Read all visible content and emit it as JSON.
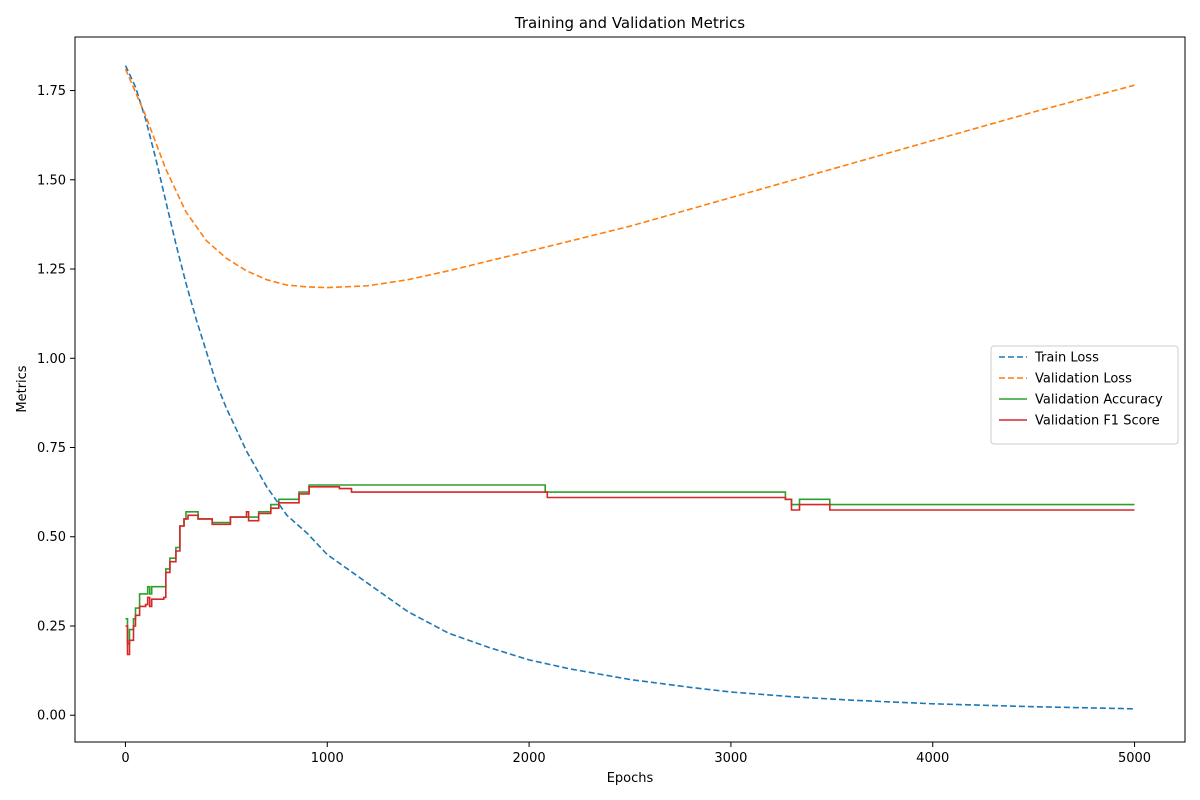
{
  "chart_data": {
    "type": "line",
    "title": "Training and Validation Metrics",
    "xlabel": "Epochs",
    "ylabel": "Metrics",
    "xlim": [
      -250,
      5250
    ],
    "ylim": [
      -0.075,
      1.9
    ],
    "xticks": [
      0,
      1000,
      2000,
      3000,
      4000,
      5000
    ],
    "yticks": [
      0.0,
      0.25,
      0.5,
      0.75,
      1.0,
      1.25,
      1.5,
      1.75
    ],
    "xtick_labels": [
      "0",
      "1000",
      "2000",
      "3000",
      "4000",
      "5000"
    ],
    "ytick_labels": [
      "0.00",
      "0.25",
      "0.50",
      "0.75",
      "1.00",
      "1.25",
      "1.50",
      "1.75"
    ],
    "grid": false,
    "legend_position": "center-right",
    "series": [
      {
        "name": "Train Loss",
        "color": "#1f77b4",
        "style": "dashed",
        "x": [
          0,
          50,
          100,
          150,
          200,
          250,
          300,
          350,
          400,
          450,
          500,
          600,
          700,
          800,
          900,
          1000,
          1200,
          1400,
          1600,
          1800,
          2000,
          2200,
          2500,
          2800,
          3000,
          3300,
          3600,
          4000,
          4500,
          5000
        ],
        "y": [
          1.82,
          1.76,
          1.67,
          1.56,
          1.44,
          1.32,
          1.21,
          1.11,
          1.02,
          0.93,
          0.86,
          0.74,
          0.64,
          0.56,
          0.51,
          0.45,
          0.37,
          0.29,
          0.23,
          0.19,
          0.155,
          0.13,
          0.1,
          0.078,
          0.065,
          0.052,
          0.042,
          0.032,
          0.024,
          0.018
        ]
      },
      {
        "name": "Validation Loss",
        "color": "#ff7f0e",
        "style": "dashed",
        "x": [
          0,
          100,
          200,
          300,
          400,
          500,
          600,
          700,
          800,
          900,
          1000,
          1200,
          1400,
          1600,
          2000,
          2500,
          3000,
          3500,
          4000,
          4500,
          5000
        ],
        "y": [
          1.81,
          1.68,
          1.53,
          1.41,
          1.33,
          1.28,
          1.245,
          1.22,
          1.205,
          1.2,
          1.198,
          1.203,
          1.22,
          1.245,
          1.3,
          1.37,
          1.45,
          1.53,
          1.61,
          1.69,
          1.765
        ]
      },
      {
        "name": "Validation Accuracy",
        "color": "#2ca02c",
        "style": "solid",
        "x": [
          0,
          10,
          20,
          40,
          50,
          70,
          100,
          110,
          120,
          130,
          190,
          200,
          220,
          250,
          270,
          290,
          300,
          360,
          430,
          520,
          600,
          620,
          660,
          720,
          760,
          860,
          910,
          2080,
          3270,
          3300,
          3340,
          3490,
          5000
        ],
        "y": [
          0.27,
          0.2,
          0.24,
          0.27,
          0.3,
          0.34,
          0.34,
          0.36,
          0.34,
          0.36,
          0.36,
          0.41,
          0.44,
          0.47,
          0.53,
          0.55,
          0.57,
          0.55,
          0.54,
          0.555,
          0.555,
          0.555,
          0.57,
          0.59,
          0.605,
          0.625,
          0.645,
          0.625,
          0.605,
          0.59,
          0.605,
          0.59,
          0.59
        ]
      },
      {
        "name": "Validation F1 Score",
        "color": "#d62728",
        "style": "solid",
        "x": [
          0,
          10,
          20,
          40,
          50,
          70,
          100,
          110,
          120,
          130,
          190,
          200,
          220,
          250,
          270,
          290,
          310,
          360,
          430,
          520,
          600,
          610,
          660,
          720,
          760,
          860,
          910,
          1060,
          1120,
          2070,
          2090,
          3270,
          3300,
          3340,
          3490,
          5000
        ],
        "y": [
          0.25,
          0.17,
          0.21,
          0.25,
          0.28,
          0.305,
          0.31,
          0.33,
          0.305,
          0.325,
          0.33,
          0.4,
          0.43,
          0.46,
          0.53,
          0.55,
          0.56,
          0.55,
          0.535,
          0.555,
          0.57,
          0.545,
          0.565,
          0.58,
          0.595,
          0.62,
          0.64,
          0.635,
          0.625,
          0.625,
          0.61,
          0.605,
          0.575,
          0.59,
          0.575,
          0.575
        ]
      }
    ]
  }
}
